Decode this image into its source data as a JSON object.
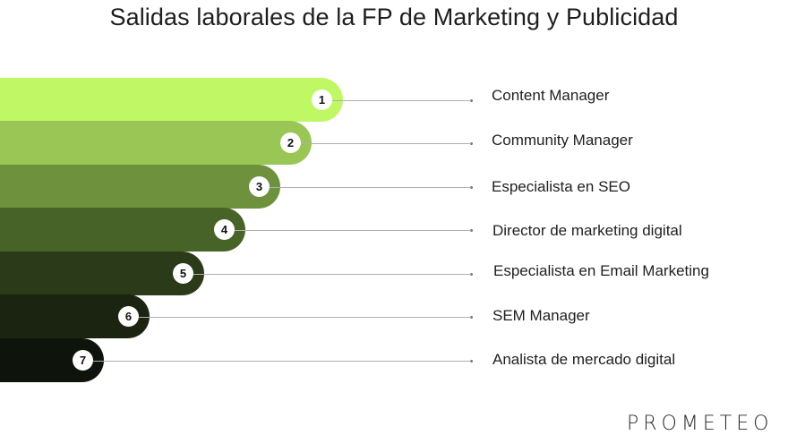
{
  "title": "Salidas laborales de la FP de Marketing y Publicidad",
  "items": [
    {
      "number": "1",
      "label": "Content Manager",
      "color": "#bff765"
    },
    {
      "number": "2",
      "label": "Community Manager",
      "color": "#9ac655"
    },
    {
      "number": "3",
      "label": "Especialista en SEO",
      "color": "#6d913c"
    },
    {
      "number": "4",
      "label": "Director de marketing digital",
      "color": "#476328"
    },
    {
      "number": "5",
      "label": "Especialista en Email Marketing",
      "color": "#2b3a19"
    },
    {
      "number": "6",
      "label": "SEM Manager",
      "color": "#1a2410"
    },
    {
      "number": "7",
      "label": "Analista de mercado digital",
      "color": "#0e140b"
    }
  ],
  "brand": "PROMETEO"
}
